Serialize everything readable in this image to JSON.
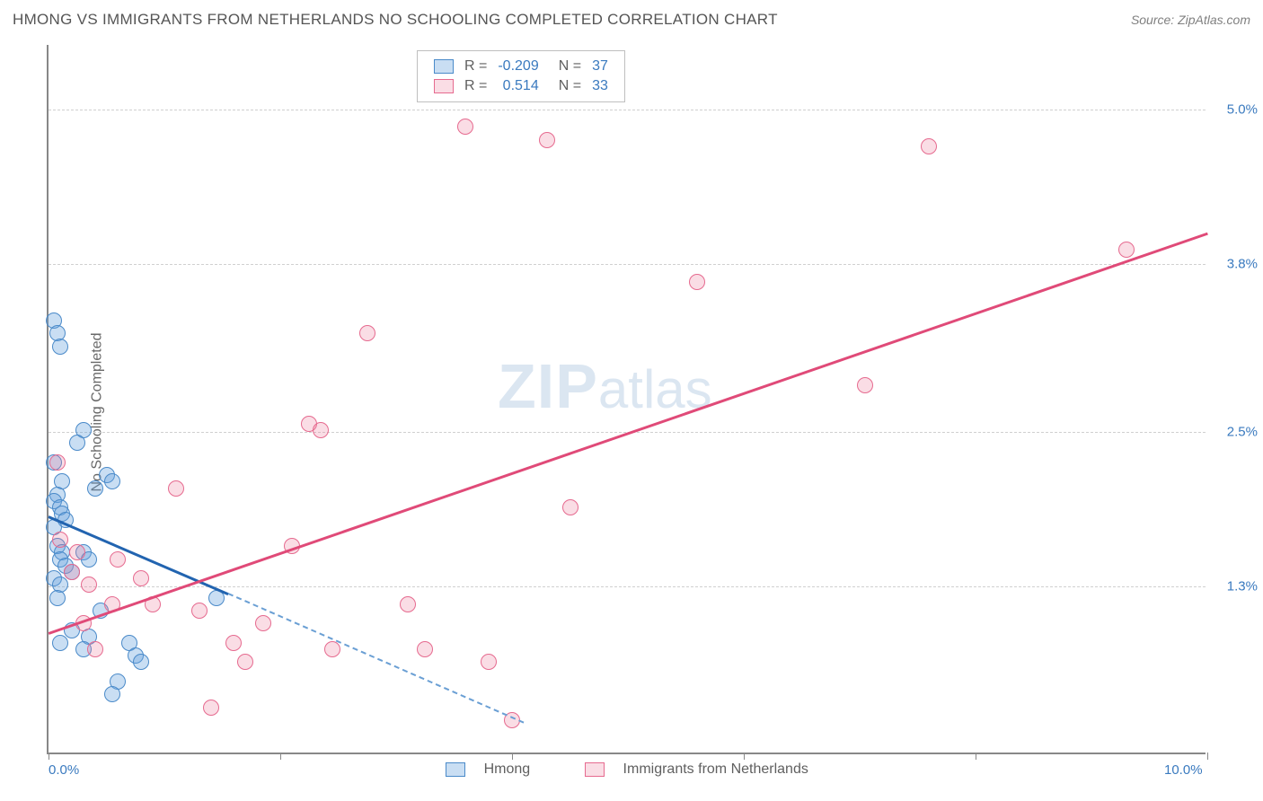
{
  "title": "HMONG VS IMMIGRANTS FROM NETHERLANDS NO SCHOOLING COMPLETED CORRELATION CHART",
  "source_prefix": "Source: ",
  "source": "ZipAtlas.com",
  "ylabel": "No Schooling Completed",
  "watermark_zip": "ZIP",
  "watermark_atlas": "atlas",
  "chart": {
    "type": "scatter",
    "xlim": [
      0,
      10
    ],
    "ylim": [
      0,
      5.5
    ],
    "y_gridlines": [
      1.3,
      2.5,
      3.8,
      5.0
    ],
    "y_tick_labels": [
      "1.3%",
      "2.5%",
      "3.8%",
      "5.0%"
    ],
    "x_ticks": [
      0,
      2,
      4,
      6,
      8,
      10
    ],
    "x_tick_labels_shown": {
      "0": "0.0%",
      "10": "10.0%"
    },
    "background_color": "#ffffff",
    "axis_color": "#888888",
    "grid_color": "#d0d0d0",
    "tick_label_color": "#3a7abf",
    "series": [
      {
        "name": "Hmong",
        "color_fill": "rgba(100,160,220,0.35)",
        "color_stroke": "#4a8ac9",
        "marker_radius": 9,
        "R": -0.209,
        "N": 37,
        "points": [
          [
            0.05,
            3.35
          ],
          [
            0.08,
            3.25
          ],
          [
            0.1,
            3.15
          ],
          [
            0.05,
            2.25
          ],
          [
            0.3,
            2.5
          ],
          [
            0.25,
            2.4
          ],
          [
            0.12,
            2.1
          ],
          [
            0.08,
            2.0
          ],
          [
            0.05,
            1.95
          ],
          [
            0.1,
            1.9
          ],
          [
            0.12,
            1.85
          ],
          [
            0.15,
            1.8
          ],
          [
            0.05,
            1.75
          ],
          [
            0.5,
            2.15
          ],
          [
            0.55,
            2.1
          ],
          [
            0.4,
            2.05
          ],
          [
            0.08,
            1.6
          ],
          [
            0.12,
            1.55
          ],
          [
            0.1,
            1.5
          ],
          [
            0.15,
            1.45
          ],
          [
            0.3,
            1.55
          ],
          [
            0.35,
            1.5
          ],
          [
            0.2,
            1.4
          ],
          [
            0.05,
            1.35
          ],
          [
            0.1,
            1.3
          ],
          [
            0.08,
            1.2
          ],
          [
            0.45,
            1.1
          ],
          [
            0.7,
            0.85
          ],
          [
            0.75,
            0.75
          ],
          [
            0.8,
            0.7
          ],
          [
            0.35,
            0.9
          ],
          [
            0.3,
            0.8
          ],
          [
            0.6,
            0.55
          ],
          [
            0.55,
            0.45
          ],
          [
            0.1,
            0.85
          ],
          [
            1.45,
            1.2
          ],
          [
            0.2,
            0.95
          ]
        ],
        "regression": {
          "x1": 0.0,
          "y1": 1.85,
          "x2": 1.55,
          "y2": 1.25,
          "solid": true
        },
        "regression_ext": {
          "x1": 1.55,
          "y1": 1.25,
          "x2": 4.1,
          "y2": 0.25,
          "dashed": true
        }
      },
      {
        "name": "Immigrants from Netherlands",
        "color_fill": "rgba(235,120,150,0.25)",
        "color_stroke": "#e66a8f",
        "marker_radius": 9,
        "R": 0.514,
        "N": 33,
        "points": [
          [
            3.6,
            4.85
          ],
          [
            4.3,
            4.75
          ],
          [
            7.6,
            4.7
          ],
          [
            2.75,
            3.25
          ],
          [
            5.6,
            3.65
          ],
          [
            7.05,
            2.85
          ],
          [
            9.3,
            3.9
          ],
          [
            2.25,
            2.55
          ],
          [
            2.35,
            2.5
          ],
          [
            1.1,
            2.05
          ],
          [
            2.1,
            1.6
          ],
          [
            4.5,
            1.9
          ],
          [
            0.08,
            2.25
          ],
          [
            0.6,
            1.5
          ],
          [
            0.55,
            1.15
          ],
          [
            0.9,
            1.15
          ],
          [
            1.3,
            1.1
          ],
          [
            1.85,
            1.0
          ],
          [
            3.1,
            1.15
          ],
          [
            3.25,
            0.8
          ],
          [
            2.45,
            0.8
          ],
          [
            1.6,
            0.85
          ],
          [
            1.7,
            0.7
          ],
          [
            3.8,
            0.7
          ],
          [
            4.0,
            0.25
          ],
          [
            1.4,
            0.35
          ],
          [
            0.4,
            0.8
          ],
          [
            0.3,
            1.0
          ],
          [
            0.35,
            1.3
          ],
          [
            0.25,
            1.55
          ],
          [
            0.2,
            1.4
          ],
          [
            0.8,
            1.35
          ],
          [
            0.1,
            1.65
          ]
        ],
        "regression": {
          "x1": 0.0,
          "y1": 0.95,
          "x2": 10.0,
          "y2": 4.05,
          "solid": true
        }
      }
    ]
  },
  "legend_top": {
    "rows": [
      {
        "swatch": "blue",
        "r_label": "R =",
        "r_val": "-0.209",
        "n_label": "N =",
        "n_val": "37"
      },
      {
        "swatch": "pink",
        "r_label": "R =",
        "r_val": "0.514",
        "n_label": "N =",
        "n_val": "33"
      }
    ]
  },
  "legend_bottom": {
    "items": [
      {
        "swatch": "blue",
        "label": "Hmong"
      },
      {
        "swatch": "pink",
        "label": "Immigrants from Netherlands"
      }
    ]
  }
}
